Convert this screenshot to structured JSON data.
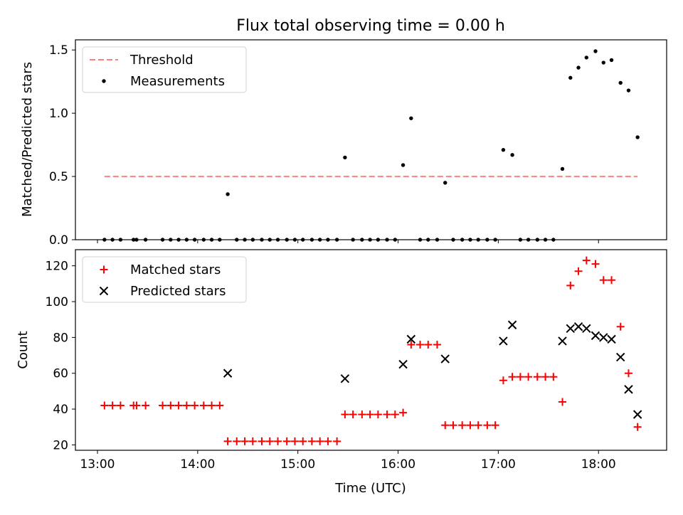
{
  "figure": {
    "title": "Flux total observing time = 0.00 h",
    "xlabel": "Time (UTC)",
    "x_ticks": [
      {
        "hour": 13,
        "label": "13:00"
      },
      {
        "hour": 14,
        "label": "14:00"
      },
      {
        "hour": 15,
        "label": "15:00"
      },
      {
        "hour": 16,
        "label": "16:00"
      },
      {
        "hour": 17,
        "label": "17:00"
      },
      {
        "hour": 18,
        "label": "18:00"
      }
    ],
    "xlim_hours": [
      12.78,
      18.68
    ]
  },
  "chart_data": [
    {
      "type": "scatter",
      "panel": "top",
      "ylabel": "Matched/Predicted stars",
      "ylim": [
        0,
        1.58
      ],
      "y_ticks": [
        {
          "value": 0,
          "label": "0.0"
        },
        {
          "value": 0.5,
          "label": "0.5"
        },
        {
          "value": 1.0,
          "label": "1.0"
        },
        {
          "value": 1.5,
          "label": "1.5"
        }
      ],
      "legend": {
        "placement": "top-left",
        "entries": [
          {
            "key": "threshold",
            "label": "Threshold"
          },
          {
            "key": "measurements",
            "label": "Measurements"
          }
        ]
      },
      "threshold": {
        "value": 0.5,
        "x_range_hours": [
          13.07,
          18.39
        ],
        "color": "#ff7f7f",
        "style": "dashed"
      },
      "measurements": {
        "color": "#000000",
        "points": [
          [
            13.07,
            0
          ],
          [
            13.15,
            0
          ],
          [
            13.23,
            0
          ],
          [
            13.36,
            0
          ],
          [
            13.39,
            0
          ],
          [
            13.48,
            0
          ],
          [
            13.65,
            0
          ],
          [
            13.73,
            0
          ],
          [
            13.81,
            0
          ],
          [
            13.89,
            0
          ],
          [
            13.97,
            0
          ],
          [
            14.06,
            0
          ],
          [
            14.14,
            0
          ],
          [
            14.22,
            0
          ],
          [
            14.3,
            0.36
          ],
          [
            14.39,
            0
          ],
          [
            14.47,
            0
          ],
          [
            14.55,
            0
          ],
          [
            14.64,
            0
          ],
          [
            14.72,
            0
          ],
          [
            14.8,
            0
          ],
          [
            14.89,
            0
          ],
          [
            14.97,
            0
          ],
          [
            15.05,
            0
          ],
          [
            15.14,
            0
          ],
          [
            15.22,
            0
          ],
          [
            15.3,
            0
          ],
          [
            15.39,
            0
          ],
          [
            15.47,
            0.65
          ],
          [
            15.55,
            0
          ],
          [
            15.64,
            0
          ],
          [
            15.72,
            0
          ],
          [
            15.8,
            0
          ],
          [
            15.89,
            0
          ],
          [
            15.97,
            0
          ],
          [
            16.05,
            0.59
          ],
          [
            16.13,
            0.96
          ],
          [
            16.22,
            0
          ],
          [
            16.3,
            0
          ],
          [
            16.39,
            0
          ],
          [
            16.47,
            0.45
          ],
          [
            16.55,
            0
          ],
          [
            16.64,
            0
          ],
          [
            16.72,
            0
          ],
          [
            16.8,
            0
          ],
          [
            16.89,
            0
          ],
          [
            16.97,
            0
          ],
          [
            17.05,
            0.71
          ],
          [
            17.14,
            0.67
          ],
          [
            17.22,
            0
          ],
          [
            17.3,
            0
          ],
          [
            17.39,
            0
          ],
          [
            17.47,
            0
          ],
          [
            17.55,
            0
          ],
          [
            17.64,
            0.56
          ],
          [
            17.72,
            1.28
          ],
          [
            17.8,
            1.36
          ],
          [
            17.88,
            1.44
          ],
          [
            17.97,
            1.49
          ],
          [
            18.05,
            1.4
          ],
          [
            18.13,
            1.42
          ],
          [
            18.22,
            1.24
          ],
          [
            18.3,
            1.18
          ],
          [
            18.39,
            0.81
          ]
        ]
      }
    },
    {
      "type": "scatter",
      "panel": "bottom",
      "ylabel": "Count",
      "ylim": [
        17,
        129
      ],
      "y_ticks": [
        {
          "value": 20,
          "label": "20"
        },
        {
          "value": 40,
          "label": "40"
        },
        {
          "value": 60,
          "label": "60"
        },
        {
          "value": 80,
          "label": "80"
        },
        {
          "value": 100,
          "label": "100"
        },
        {
          "value": 120,
          "label": "120"
        }
      ],
      "legend": {
        "placement": "top-left",
        "entries": [
          {
            "key": "matched",
            "label": "Matched stars"
          },
          {
            "key": "predicted",
            "label": "Predicted stars"
          }
        ]
      },
      "series": [
        {
          "key": "matched",
          "name": "Matched stars",
          "marker": "plus",
          "color": "#ff0000",
          "points": [
            [
              13.07,
              42
            ],
            [
              13.15,
              42
            ],
            [
              13.23,
              42
            ],
            [
              13.36,
              42
            ],
            [
              13.39,
              42
            ],
            [
              13.48,
              42
            ],
            [
              13.65,
              42
            ],
            [
              13.73,
              42
            ],
            [
              13.81,
              42
            ],
            [
              13.89,
              42
            ],
            [
              13.97,
              42
            ],
            [
              14.06,
              42
            ],
            [
              14.14,
              42
            ],
            [
              14.22,
              42
            ],
            [
              14.3,
              22
            ],
            [
              14.39,
              22
            ],
            [
              14.47,
              22
            ],
            [
              14.55,
              22
            ],
            [
              14.64,
              22
            ],
            [
              14.72,
              22
            ],
            [
              14.8,
              22
            ],
            [
              14.89,
              22
            ],
            [
              14.97,
              22
            ],
            [
              15.05,
              22
            ],
            [
              15.14,
              22
            ],
            [
              15.22,
              22
            ],
            [
              15.3,
              22
            ],
            [
              15.39,
              22
            ],
            [
              15.47,
              37
            ],
            [
              15.55,
              37
            ],
            [
              15.64,
              37
            ],
            [
              15.72,
              37
            ],
            [
              15.8,
              37
            ],
            [
              15.89,
              37
            ],
            [
              15.97,
              37
            ],
            [
              16.05,
              38
            ],
            [
              16.13,
              76
            ],
            [
              16.22,
              76
            ],
            [
              16.3,
              76
            ],
            [
              16.39,
              76
            ],
            [
              16.47,
              31
            ],
            [
              16.55,
              31
            ],
            [
              16.64,
              31
            ],
            [
              16.72,
              31
            ],
            [
              16.8,
              31
            ],
            [
              16.89,
              31
            ],
            [
              16.97,
              31
            ],
            [
              17.05,
              56
            ],
            [
              17.14,
              58
            ],
            [
              17.22,
              58
            ],
            [
              17.3,
              58
            ],
            [
              17.39,
              58
            ],
            [
              17.47,
              58
            ],
            [
              17.55,
              58
            ],
            [
              17.64,
              44
            ],
            [
              17.72,
              109
            ],
            [
              17.8,
              117
            ],
            [
              17.88,
              123
            ],
            [
              17.97,
              121
            ],
            [
              18.05,
              112
            ],
            [
              18.13,
              112
            ],
            [
              18.22,
              86
            ],
            [
              18.3,
              60
            ],
            [
              18.39,
              30
            ]
          ]
        },
        {
          "key": "predicted",
          "name": "Predicted stars",
          "marker": "x",
          "color": "#000000",
          "points": [
            [
              14.3,
              60
            ],
            [
              15.47,
              57
            ],
            [
              16.05,
              65
            ],
            [
              16.13,
              79
            ],
            [
              16.47,
              68
            ],
            [
              17.05,
              78
            ],
            [
              17.14,
              87
            ],
            [
              17.64,
              78
            ],
            [
              17.72,
              85
            ],
            [
              17.8,
              86
            ],
            [
              17.88,
              85
            ],
            [
              17.97,
              81
            ],
            [
              18.05,
              80
            ],
            [
              18.13,
              79
            ],
            [
              18.22,
              69
            ],
            [
              18.3,
              51
            ],
            [
              18.39,
              37
            ]
          ]
        }
      ]
    }
  ]
}
